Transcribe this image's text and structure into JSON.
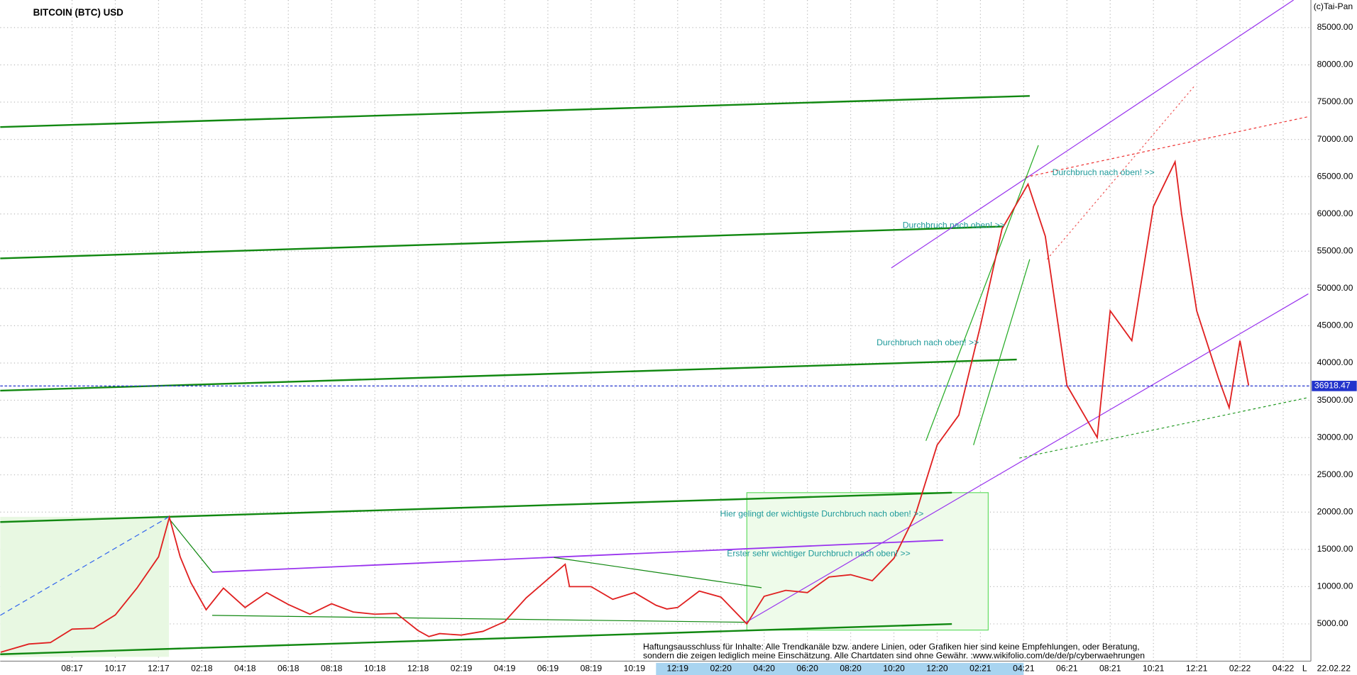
{
  "chart_data": {
    "type": "line",
    "title": "BITCOIN (BTC) USD",
    "copyright": "(c)Tai-Pan",
    "date": "22.02.22",
    "scale_mode": "L",
    "xlim": [
      -3.32,
      57.28
    ],
    "ylim": [
      0,
      88700
    ],
    "grid": true,
    "xticks": [
      {
        "value": 0,
        "label": "08:17"
      },
      {
        "value": 2,
        "label": "10:17"
      },
      {
        "value": 4,
        "label": "12:17"
      },
      {
        "value": 6,
        "label": "02:18"
      },
      {
        "value": 8,
        "label": "04:18"
      },
      {
        "value": 10,
        "label": "06:18"
      },
      {
        "value": 12,
        "label": "08:18"
      },
      {
        "value": 14,
        "label": "10:18"
      },
      {
        "value": 16,
        "label": "12:18"
      },
      {
        "value": 18,
        "label": "02:19"
      },
      {
        "value": 20,
        "label": "04:19"
      },
      {
        "value": 22,
        "label": "06:19"
      },
      {
        "value": 24,
        "label": "08:19"
      },
      {
        "value": 26,
        "label": "10:19"
      },
      {
        "value": 28,
        "label": "12:19"
      },
      {
        "value": 30,
        "label": "02:20"
      },
      {
        "value": 32,
        "label": "04:20"
      },
      {
        "value": 34,
        "label": "06:20"
      },
      {
        "value": 36,
        "label": "08:20"
      },
      {
        "value": 38,
        "label": "10:20"
      },
      {
        "value": 40,
        "label": "12:20"
      },
      {
        "value": 42,
        "label": "02:21"
      },
      {
        "value": 44,
        "label": "04:21"
      },
      {
        "value": 46,
        "label": "06:21"
      },
      {
        "value": 48,
        "label": "08:21"
      },
      {
        "value": 50,
        "label": "10:21"
      },
      {
        "value": 52,
        "label": "12:21"
      },
      {
        "value": 54,
        "label": "02:22"
      },
      {
        "value": 56,
        "label": "04:22"
      }
    ],
    "yticks": [
      {
        "value": 5000,
        "label": "5000.00"
      },
      {
        "value": 10000,
        "label": "10000.00"
      },
      {
        "value": 15000,
        "label": "15000.00"
      },
      {
        "value": 20000,
        "label": "20000.00"
      },
      {
        "value": 25000,
        "label": "25000.00"
      },
      {
        "value": 30000,
        "label": "30000.00"
      },
      {
        "value": 35000,
        "label": "35000.00"
      },
      {
        "value": 40000,
        "label": "40000.00"
      },
      {
        "value": 45000,
        "label": "45000.00"
      },
      {
        "value": 50000,
        "label": "50000.00"
      },
      {
        "value": 55000,
        "label": "55000.00"
      },
      {
        "value": 60000,
        "label": "60000.00"
      },
      {
        "value": 65000,
        "label": "65000.00"
      },
      {
        "value": 70000,
        "label": "70000.00"
      },
      {
        "value": 75000,
        "label": "75000.00"
      },
      {
        "value": 80000,
        "label": "80000.00"
      },
      {
        "value": 85000,
        "label": "85000.00"
      }
    ],
    "last_price": 36918.47,
    "series": [
      {
        "name": "BTC",
        "color": "#e02020",
        "x": [
          -3.3,
          -2,
          -1,
          0,
          1,
          2,
          3,
          4,
          4.5,
          5,
          5.5,
          6.2,
          7,
          8,
          9,
          10,
          11,
          12,
          13,
          14,
          15,
          16,
          16.5,
          17,
          18,
          19,
          20,
          21,
          22,
          22.8,
          23,
          24,
          25,
          26,
          27,
          27.5,
          28,
          29,
          30,
          31.2,
          32,
          33,
          34,
          35,
          36,
          37,
          38,
          39,
          40,
          41,
          42,
          43,
          44.2,
          45,
          46,
          47,
          47.4,
          48,
          49,
          50,
          51,
          51.3,
          52,
          53,
          53.5,
          54,
          54.4
        ],
        "values": [
          1200,
          2300,
          2500,
          4300,
          4400,
          6200,
          9800,
          14000,
          19300,
          14000,
          10500,
          6900,
          9800,
          7200,
          9200,
          7600,
          6300,
          7700,
          6600,
          6300,
          6400,
          4100,
          3300,
          3700,
          3500,
          4000,
          5300,
          8500,
          11000,
          13000,
          10000,
          10000,
          8300,
          9200,
          7500,
          7000,
          7200,
          9400,
          8600,
          5000,
          8700,
          9500,
          9200,
          11300,
          11600,
          10800,
          13800,
          19700,
          29000,
          33000,
          45000,
          58000,
          64000,
          57000,
          37000,
          32000,
          30000,
          47000,
          43000,
          61000,
          67000,
          60000,
          47000,
          38000,
          34000,
          43000,
          37000
        ]
      }
    ],
    "annotations": [
      "Durchbruch nach oben! >>",
      "Durchbruch nach oben! >>",
      "Durchbruch nach oben! >>",
      "Hier gelingt der wichtigste Durchbruch nach oben! >>",
      "Erster sehr wichtiger Durchbruch nach oben! >>"
    ],
    "disclaimer": [
      "Haftungsausschluss für Inhalte: Alle Trendkanäle bzw. andere Linien, oder Grafiken hier sind keine Empfehlungen, oder Beratung,",
      "sondern die zeigen lediglich meine  Einschätzung. Alle Chartdaten sind ohne Gewähr. :www.wikifolio.com/de/de/p/cyberwaehrungen"
    ]
  }
}
